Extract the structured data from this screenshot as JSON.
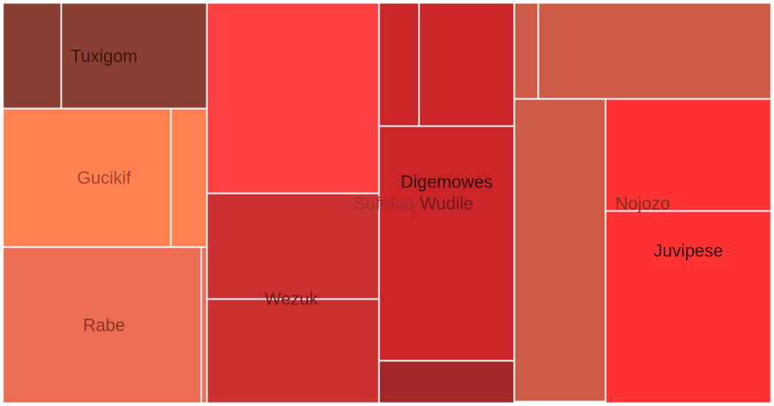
{
  "chart_data": {
    "type": "treemap",
    "groups": [
      {
        "name": "Tuxigom",
        "color": "#8b3e34",
        "label_color": "#3b1410",
        "children": [
          {
            "value": 4.7
          },
          {
            "value": 9.9
          }
        ]
      },
      {
        "name": "Gucikif",
        "color": "#ff8152",
        "label_color": "#a3442a",
        "children": [
          {
            "value": 14.2
          },
          {
            "value": 3.4
          }
        ]
      },
      {
        "name": "Rabe",
        "color": "#ed6c54",
        "label_color": "#8a3427",
        "children": [
          {
            "value": 24.1
          },
          {
            "value": 0.5
          }
        ]
      },
      {
        "name": "Sufefuq",
        "color": "#ff4043",
        "label_color": "#a32a2c",
        "children": [
          {
            "value": 25.1
          }
        ]
      },
      {
        "name": "Wezuk",
        "color": "#cc3132",
        "label_color": "#6e1a1b",
        "children": [
          {
            "value": 13.8
          },
          {
            "value": 13.7
          }
        ]
      },
      {
        "name": "Wudile",
        "color": "#cc2528",
        "label_color": "#70181a",
        "children": [
          {
            "value": 3.8
          },
          {
            "value": 9.0
          }
        ]
      },
      {
        "name": "Digemowes",
        "color": "#cc2528",
        "label_color": "#2d0607",
        "children": [
          {
            "value": 14.7
          }
        ]
      },
      {
        "name": "",
        "color": "#a3282a",
        "label_color": "#5a1415",
        "children": [
          {
            "value": 2.4
          }
        ]
      },
      {
        "name": "Nojozo",
        "color": "#cc5c48",
        "label_color": "#7a2f22",
        "children": [
          {
            "value": 1.7
          },
          {
            "value": 14.5
          },
          {
            "value": 14.2
          }
        ]
      },
      {
        "name": "Juvipese",
        "color": "#ff3133",
        "label_color": "#2d0607",
        "children": [
          {
            "value": 10.6
          },
          {
            "value": 12.5
          }
        ]
      }
    ]
  }
}
